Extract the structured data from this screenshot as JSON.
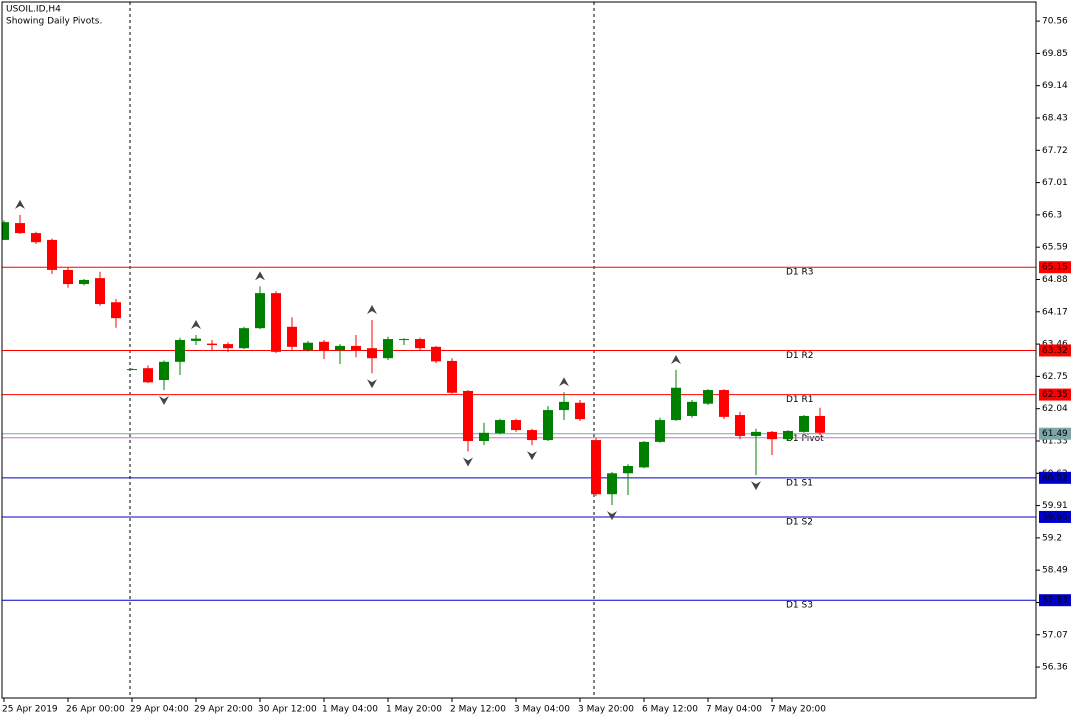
{
  "chart_data": {
    "type": "candlestick",
    "title": "USOIL.ID,H4",
    "subtitle": "Showing Daily Pivots.",
    "categories": [
      "25 Apr 2019",
      null,
      null,
      null,
      "26 Apr 00:00",
      null,
      null,
      null,
      "29 Apr 04:00",
      null,
      null,
      null,
      "29 Apr 20:00",
      null,
      null,
      null,
      "30 Apr 12:00",
      null,
      null,
      null,
      "1 May 04:00",
      null,
      null,
      null,
      "1 May 20:00",
      null,
      null,
      null,
      "2 May 12:00",
      null,
      null,
      null,
      "3 May 04:00",
      null,
      null,
      null,
      "3 May 20:00",
      null,
      null,
      null,
      "6 May 12:00",
      null,
      null,
      null,
      "7 May 04:00",
      null,
      null,
      null,
      "7 May 20:00",
      null,
      null,
      null
    ],
    "open": [
      65.75,
      66.12,
      65.9,
      65.75,
      65.09,
      64.78,
      64.91,
      64.38,
      62.91,
      62.93,
      62.67,
      63.07,
      63.53,
      63.47,
      63.46,
      63.37,
      63.81,
      64.58,
      63.84,
      63.33,
      63.51,
      63.33,
      63.42,
      63.37,
      63.15,
      63.55,
      63.57,
      63.4,
      63.09,
      62.43,
      61.33,
      61.5,
      61.79,
      61.57,
      61.35,
      62.01,
      62.17,
      61.35,
      60.16,
      60.62,
      60.75,
      61.31,
      61.79,
      61.88,
      62.15,
      62.45,
      61.9,
      61.44,
      61.53,
      61.37,
      61.53,
      61.88
    ],
    "high": [
      66.18,
      66.3,
      65.93,
      65.78,
      65.15,
      64.89,
      65.05,
      64.45,
      62.93,
      62.99,
      63.1,
      63.6,
      63.66,
      63.55,
      63.5,
      63.84,
      64.73,
      64.62,
      64.05,
      63.53,
      63.55,
      63.46,
      63.66,
      63.99,
      63.62,
      63.59,
      63.6,
      63.42,
      63.15,
      62.45,
      61.73,
      61.82,
      61.82,
      61.6,
      62.1,
      62.4,
      62.23,
      61.4,
      60.65,
      60.82,
      61.33,
      61.84,
      62.89,
      62.23,
      62.47,
      62.47,
      61.97,
      61.6,
      61.55,
      61.57,
      61.9,
      62.06
    ],
    "low": [
      65.75,
      65.88,
      65.66,
      65.0,
      64.7,
      64.75,
      64.3,
      63.82,
      62.89,
      62.6,
      62.45,
      62.78,
      63.44,
      63.33,
      63.29,
      63.35,
      63.79,
      63.26,
      63.33,
      63.3,
      63.13,
      63.02,
      63.17,
      62.82,
      63.11,
      63.44,
      63.33,
      63.04,
      62.37,
      61.1,
      61.24,
      61.48,
      61.53,
      61.24,
      61.33,
      61.79,
      61.77,
      60.12,
      59.92,
      60.14,
      60.73,
      61.29,
      61.77,
      61.84,
      62.12,
      61.81,
      61.37,
      60.58,
      61.02,
      61.33,
      61.51,
      61.46
    ],
    "close": [
      66.14,
      65.9,
      65.7,
      65.09,
      64.78,
      64.87,
      64.34,
      64.03,
      62.91,
      62.62,
      63.07,
      63.55,
      63.58,
      63.44,
      63.37,
      63.81,
      64.58,
      63.29,
      63.4,
      63.49,
      63.31,
      63.42,
      63.31,
      63.15,
      63.57,
      63.57,
      63.37,
      63.08,
      62.39,
      61.33,
      61.51,
      61.79,
      61.57,
      61.35,
      62.01,
      62.19,
      61.81,
      60.16,
      60.62,
      60.78,
      61.31,
      61.79,
      62.5,
      62.19,
      62.45,
      61.86,
      61.44,
      61.53,
      61.37,
      61.55,
      61.88,
      61.51
    ],
    "fractal_up": [
      null,
      66.3,
      null,
      null,
      null,
      null,
      null,
      null,
      null,
      null,
      null,
      null,
      63.66,
      null,
      null,
      null,
      64.73,
      null,
      null,
      null,
      null,
      null,
      null,
      63.99,
      null,
      null,
      null,
      null,
      null,
      null,
      null,
      null,
      null,
      null,
      null,
      62.4,
      null,
      null,
      null,
      null,
      null,
      null,
      62.89,
      null,
      null,
      null,
      null,
      null,
      null,
      null,
      null,
      null
    ],
    "fractal_down": [
      null,
      null,
      null,
      null,
      null,
      null,
      null,
      null,
      null,
      null,
      62.45,
      null,
      null,
      null,
      null,
      null,
      null,
      null,
      null,
      null,
      null,
      null,
      null,
      62.82,
      null,
      null,
      null,
      null,
      null,
      61.1,
      null,
      null,
      null,
      61.24,
      null,
      null,
      null,
      null,
      59.92,
      null,
      null,
      null,
      null,
      null,
      null,
      null,
      null,
      60.58,
      null,
      null,
      null,
      null
    ],
    "up_color": "#008000",
    "down_color": "#ff0000",
    "pivots": [
      {
        "label": "D1 R3",
        "value": 65.15,
        "color": "#ff0000"
      },
      {
        "label": "D1 R2",
        "value": 63.32,
        "color": "#ff0000"
      },
      {
        "label": "D1 R1",
        "value": 62.35,
        "color": "#ff0000"
      },
      {
        "label": "D1 Pivot",
        "value": 61.49,
        "color": "#7fa6a6"
      },
      {
        "label": "D1 S1",
        "value": 60.52,
        "color": "#0000cd"
      },
      {
        "label": "D1 S2",
        "value": 59.66,
        "color": "#0000cd"
      },
      {
        "label": "D1 S3",
        "value": 57.83,
        "color": "#0000cd"
      }
    ],
    "bid": 61.4,
    "bid_color": "#d070d0",
    "ylim": [
      55.68,
      70.98
    ],
    "yticks": [
      56.36,
      57.07,
      57.78,
      58.49,
      59.2,
      59.91,
      60.62,
      61.33,
      62.04,
      62.75,
      63.46,
      64.17,
      64.88,
      65.59,
      66.3,
      67.01,
      67.72,
      68.43,
      69.14,
      69.85,
      70.56
    ]
  }
}
